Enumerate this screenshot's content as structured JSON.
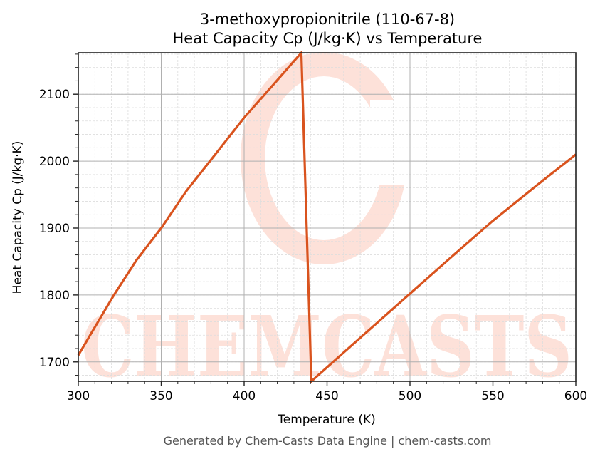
{
  "chart_data": {
    "type": "line",
    "title": "3-methoxypropionitrile (110-67-8)",
    "subtitle": "Heat Capacity Cp (J/kg·K) vs Temperature",
    "xlabel": "Temperature (K)",
    "ylabel": "Heat Capacity Cp (J/kg·K)",
    "xlim": [
      300,
      600
    ],
    "ylim": [
      1671,
      2162
    ],
    "x_ticks": [
      300,
      350,
      400,
      450,
      500,
      550,
      600
    ],
    "y_ticks": [
      1700,
      1800,
      1900,
      2000,
      2100
    ],
    "x_minor_step": 10,
    "y_minor_step": 20,
    "grid": true,
    "legend": null,
    "series": [
      {
        "name": "Cp",
        "color": "#d9531e",
        "points": [
          [
            300,
            1710
          ],
          [
            310,
            1752
          ],
          [
            321.5,
            1800
          ],
          [
            335,
            1852
          ],
          [
            350,
            1900
          ],
          [
            365,
            1955
          ],
          [
            380,
            2002
          ],
          [
            400,
            2065
          ],
          [
            415,
            2107
          ],
          [
            434.5,
            2162
          ],
          [
            440.5,
            1671
          ],
          [
            460,
            1714
          ],
          [
            480,
            1758
          ],
          [
            500,
            1802
          ],
          [
            525,
            1857
          ],
          [
            550,
            1911
          ],
          [
            575,
            1961
          ],
          [
            600,
            2010
          ]
        ]
      }
    ]
  },
  "watermark": {
    "text": "CHEMCASTS",
    "color": "#fde1d9"
  },
  "footer": "Generated by Chem-Casts Data Engine | chem-casts.com"
}
